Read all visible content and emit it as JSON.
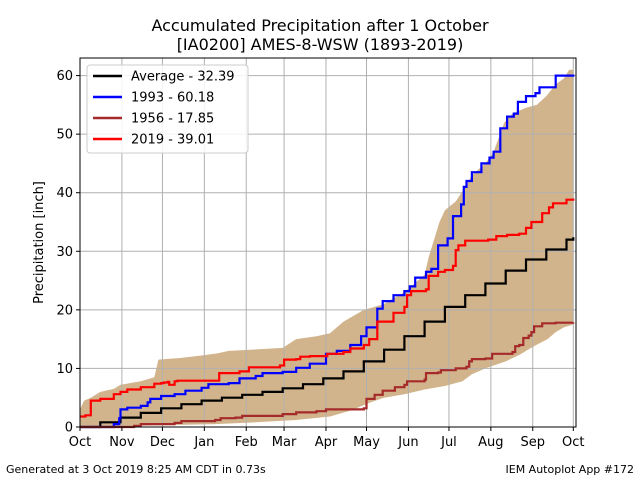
{
  "title": "Accumulated Precipitation after 1 October",
  "subtitle": "[IA0200] AMES-8-WSW (1893-2019)",
  "footer_left": "Generated at 3 Oct 2019 8:25 AM CDT in 0.73s",
  "footer_right": "IEM Autoplot App #172",
  "chart_data": {
    "type": "line",
    "ylabel": "Precipitation [inch]",
    "xlabel": "",
    "xlim": [
      0,
      367
    ],
    "ylim": [
      0,
      63
    ],
    "grid": true,
    "legend_position": "top-left",
    "x_ticks": [
      {
        "label": "Oct",
        "day": 0
      },
      {
        "label": "Nov",
        "day": 31
      },
      {
        "label": "Dec",
        "day": 61
      },
      {
        "label": "Jan",
        "day": 92
      },
      {
        "label": "Feb",
        "day": 123
      },
      {
        "label": "Mar",
        "day": 151
      },
      {
        "label": "Apr",
        "day": 182
      },
      {
        "label": "May",
        "day": 212
      },
      {
        "label": "Jun",
        "day": 243
      },
      {
        "label": "Jul",
        "day": 273
      },
      {
        "label": "Aug",
        "day": 304
      },
      {
        "label": "Sep",
        "day": 335
      },
      {
        "label": "Oct",
        "day": 365
      }
    ],
    "y_ticks": [
      0,
      10,
      20,
      30,
      40,
      50,
      60
    ],
    "band": {
      "color": "#d2b48c",
      "upper": [
        [
          0,
          3
        ],
        [
          3,
          4.5
        ],
        [
          8,
          5
        ],
        [
          15,
          6
        ],
        [
          25,
          6.5
        ],
        [
          30,
          7.2
        ],
        [
          45,
          7.8
        ],
        [
          55,
          8.5
        ],
        [
          58,
          11.5
        ],
        [
          75,
          11.8
        ],
        [
          90,
          12.2
        ],
        [
          102,
          12.6
        ],
        [
          110,
          13
        ],
        [
          150,
          13.5
        ],
        [
          160,
          15
        ],
        [
          175,
          15.5
        ],
        [
          185,
          16
        ],
        [
          195,
          18
        ],
        [
          210,
          20
        ],
        [
          218,
          20.5
        ],
        [
          225,
          21
        ],
        [
          232,
          22
        ],
        [
          240,
          23
        ],
        [
          245,
          24
        ],
        [
          255,
          26
        ],
        [
          258,
          29
        ],
        [
          262,
          32
        ],
        [
          266,
          35
        ],
        [
          270,
          37
        ],
        [
          278,
          38.5
        ],
        [
          285,
          41
        ],
        [
          290,
          43
        ],
        [
          300,
          45
        ],
        [
          306,
          47
        ],
        [
          314,
          52
        ],
        [
          320,
          53.5
        ],
        [
          330,
          54.5
        ],
        [
          338,
          55
        ],
        [
          345,
          56.5
        ],
        [
          352,
          58.5
        ],
        [
          358,
          59.5
        ],
        [
          362,
          61
        ],
        [
          365,
          61
        ]
      ],
      "lower": [
        [
          0,
          0
        ],
        [
          20,
          0.1
        ],
        [
          60,
          0.3
        ],
        [
          100,
          0.5
        ],
        [
          130,
          0.8
        ],
        [
          160,
          1.2
        ],
        [
          185,
          1.8
        ],
        [
          200,
          2.8
        ],
        [
          215,
          4.2
        ],
        [
          225,
          5
        ],
        [
          240,
          5.6
        ],
        [
          255,
          6.4
        ],
        [
          270,
          7
        ],
        [
          283,
          7.8
        ],
        [
          290,
          9
        ],
        [
          300,
          10
        ],
        [
          315,
          11.2
        ],
        [
          325,
          12.3
        ],
        [
          333,
          13.4
        ],
        [
          340,
          14.3
        ],
        [
          346,
          15
        ],
        [
          352,
          16.2
        ],
        [
          358,
          17
        ],
        [
          365,
          17.5
        ]
      ]
    },
    "series": [
      {
        "name": "Average - 32.39",
        "color": "#000000",
        "values": [
          [
            0,
            0
          ],
          [
            15,
            0.8
          ],
          [
            30,
            1.6
          ],
          [
            45,
            2.4
          ],
          [
            60,
            3.2
          ],
          [
            75,
            3.9
          ],
          [
            90,
            4.5
          ],
          [
            105,
            5.0
          ],
          [
            120,
            5.5
          ],
          [
            135,
            6.0
          ],
          [
            150,
            6.6
          ],
          [
            165,
            7.3
          ],
          [
            180,
            8.3
          ],
          [
            195,
            9.5
          ],
          [
            210,
            11.2
          ],
          [
            225,
            13.2
          ],
          [
            240,
            15.5
          ],
          [
            255,
            18.0
          ],
          [
            270,
            20.5
          ],
          [
            285,
            22.5
          ],
          [
            300,
            24.5
          ],
          [
            315,
            26.7
          ],
          [
            330,
            28.6
          ],
          [
            345,
            30.3
          ],
          [
            360,
            32.0
          ],
          [
            365,
            32.39
          ]
        ]
      },
      {
        "name": "1993 - 60.18",
        "color": "#0000ff",
        "values": [
          [
            0,
            0
          ],
          [
            25,
            0.5
          ],
          [
            29,
            1.5
          ],
          [
            30,
            3
          ],
          [
            35,
            3.3
          ],
          [
            45,
            3.6
          ],
          [
            50,
            4.2
          ],
          [
            52,
            4.8
          ],
          [
            60,
            5.3
          ],
          [
            70,
            5.6
          ],
          [
            78,
            6.2
          ],
          [
            90,
            6.7
          ],
          [
            95,
            7.3
          ],
          [
            110,
            7.5
          ],
          [
            118,
            8.3
          ],
          [
            130,
            8.7
          ],
          [
            135,
            9.2
          ],
          [
            150,
            9.4
          ],
          [
            160,
            10.1
          ],
          [
            170,
            10.8
          ],
          [
            182,
            12.5
          ],
          [
            190,
            13
          ],
          [
            200,
            14
          ],
          [
            208,
            15.5
          ],
          [
            212,
            17
          ],
          [
            220,
            20.2
          ],
          [
            224,
            21.5
          ],
          [
            232,
            22.5
          ],
          [
            240,
            23.2
          ],
          [
            244,
            24
          ],
          [
            248,
            25.5
          ],
          [
            256,
            26.5
          ],
          [
            260,
            27
          ],
          [
            265,
            31
          ],
          [
            272,
            32.2
          ],
          [
            276,
            36
          ],
          [
            282,
            38
          ],
          [
            284,
            41
          ],
          [
            286,
            42
          ],
          [
            290,
            43.5
          ],
          [
            297,
            45
          ],
          [
            303,
            46
          ],
          [
            306,
            47
          ],
          [
            311,
            51
          ],
          [
            316,
            53
          ],
          [
            321,
            53.5
          ],
          [
            324,
            55.5
          ],
          [
            330,
            56.5
          ],
          [
            337,
            57
          ],
          [
            340,
            58
          ],
          [
            346,
            58
          ],
          [
            352,
            60
          ],
          [
            365,
            60.18
          ]
        ]
      },
      {
        "name": "1956 - 17.85",
        "color": "#a52a2a",
        "values": [
          [
            0,
            0
          ],
          [
            40,
            0.2
          ],
          [
            45,
            0.5
          ],
          [
            70,
            0.7
          ],
          [
            75,
            1
          ],
          [
            100,
            1.2
          ],
          [
            104,
            1.5
          ],
          [
            115,
            1.6
          ],
          [
            120,
            1.9
          ],
          [
            150,
            2.2
          ],
          [
            160,
            2.5
          ],
          [
            175,
            2.7
          ],
          [
            182,
            3
          ],
          [
            210,
            3.2
          ],
          [
            212,
            4.8
          ],
          [
            218,
            5.5
          ],
          [
            224,
            6.2
          ],
          [
            233,
            6.8
          ],
          [
            240,
            7.2
          ],
          [
            242,
            7.8
          ],
          [
            255,
            8.1
          ],
          [
            256,
            9.2
          ],
          [
            265,
            9.3
          ],
          [
            267,
            9.7
          ],
          [
            278,
            10
          ],
          [
            286,
            10.3
          ],
          [
            288,
            11.2
          ],
          [
            290,
            11.6
          ],
          [
            300,
            11.7
          ],
          [
            305,
            12.5
          ],
          [
            320,
            12.8
          ],
          [
            322,
            13.8
          ],
          [
            325,
            14
          ],
          [
            328,
            15.2
          ],
          [
            332,
            15.6
          ],
          [
            334,
            16.2
          ],
          [
            336,
            17.2
          ],
          [
            342,
            17.7
          ],
          [
            352,
            17.8
          ],
          [
            365,
            17.85
          ]
        ]
      },
      {
        "name": "2019 - 39.01",
        "color": "#ff0000",
        "values": [
          [
            0,
            1.8
          ],
          [
            4,
            2
          ],
          [
            8,
            4.5
          ],
          [
            15,
            4.8
          ],
          [
            25,
            5.6
          ],
          [
            30,
            6
          ],
          [
            35,
            6.4
          ],
          [
            45,
            6.8
          ],
          [
            55,
            7.4
          ],
          [
            60,
            7.5
          ],
          [
            62,
            7.6
          ],
          [
            65,
            7.7
          ],
          [
            66,
            7.2
          ],
          [
            70,
            7.8
          ],
          [
            72,
            7.9
          ],
          [
            100,
            7.9
          ],
          [
            103,
            9.2
          ],
          [
            118,
            9.5
          ],
          [
            125,
            10.2
          ],
          [
            148,
            10.5
          ],
          [
            151,
            11.5
          ],
          [
            160,
            11.6
          ],
          [
            163,
            12
          ],
          [
            170,
            12.1
          ],
          [
            183,
            12.5
          ],
          [
            195,
            12.8
          ],
          [
            200,
            13.4
          ],
          [
            210,
            14
          ],
          [
            214,
            15
          ],
          [
            220,
            18
          ],
          [
            232,
            19.5
          ],
          [
            240,
            20.5
          ],
          [
            242,
            22.5
          ],
          [
            245,
            23.2
          ],
          [
            256,
            23.5
          ],
          [
            258,
            25.8
          ],
          [
            265,
            26.5
          ],
          [
            270,
            26.8
          ],
          [
            276,
            27.5
          ],
          [
            278,
            30.2
          ],
          [
            280,
            31
          ],
          [
            285,
            31.8
          ],
          [
            302,
            32
          ],
          [
            308,
            32.6
          ],
          [
            316,
            32.8
          ],
          [
            325,
            33
          ],
          [
            330,
            34
          ],
          [
            334,
            35
          ],
          [
            342,
            36.5
          ],
          [
            347,
            37.5
          ],
          [
            350,
            38.2
          ],
          [
            360,
            38.8
          ],
          [
            365,
            39.01
          ]
        ]
      }
    ]
  }
}
